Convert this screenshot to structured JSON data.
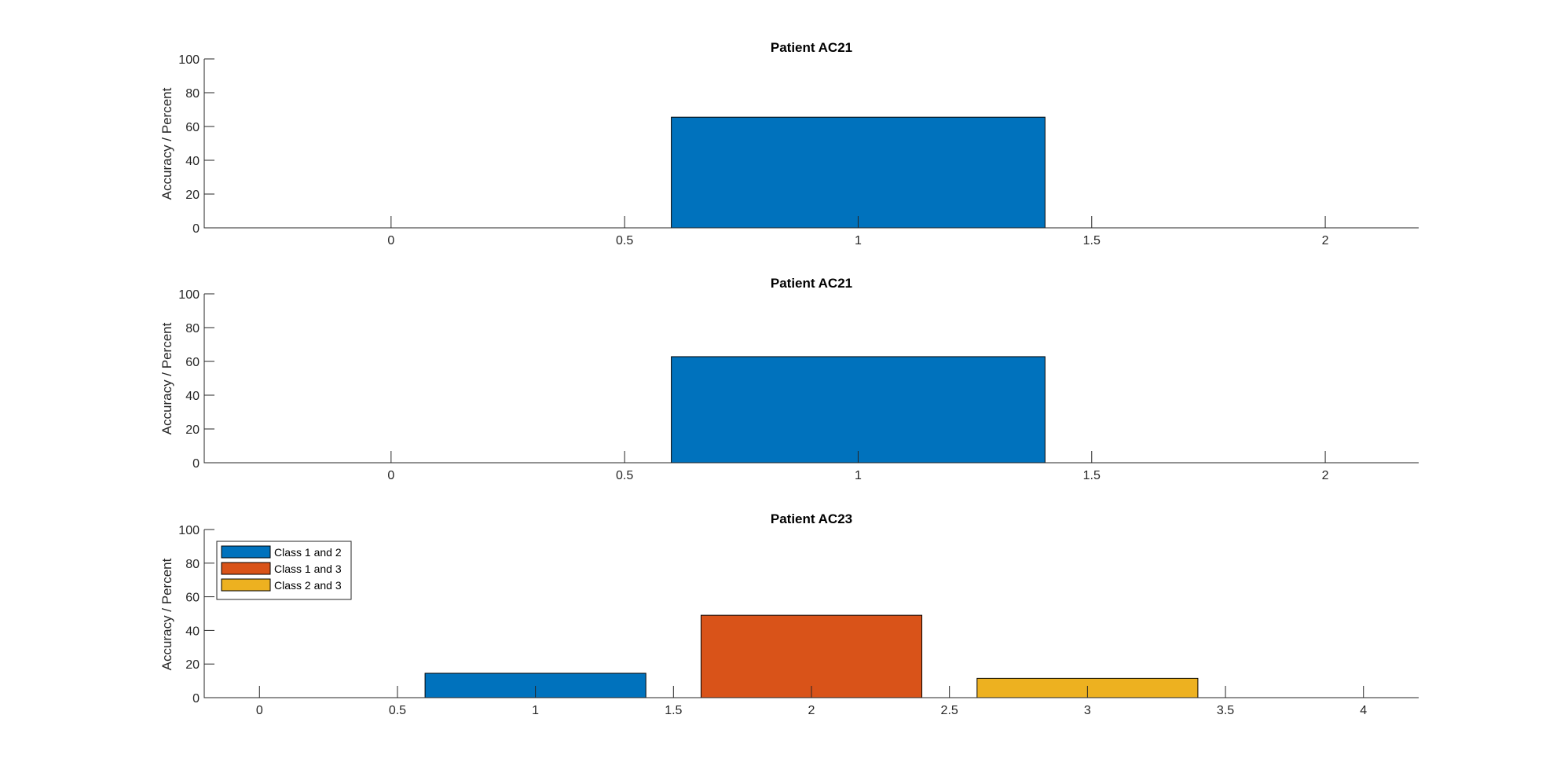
{
  "chart_data": [
    {
      "type": "bar",
      "title": "Patient AC21",
      "xlabel": "",
      "ylabel": "Accuracy / Percent",
      "xlim": [
        -0.4,
        2.2
      ],
      "ylim": [
        0,
        100
      ],
      "xticks": [
        0,
        0.5,
        1,
        1.5,
        2
      ],
      "xtick_labels": [
        "0",
        "0.5",
        "1",
        "1.5",
        "2"
      ],
      "yticks": [
        0,
        20,
        40,
        60,
        80,
        100
      ],
      "ytick_labels": [
        "0",
        "20",
        "40",
        "60",
        "80",
        "100"
      ],
      "bar_width": 0.8,
      "series": [
        {
          "x": 1,
          "value": 65.5,
          "color": "#0072BD"
        }
      ],
      "legend": null
    },
    {
      "type": "bar",
      "title": "Patient AC21",
      "xlabel": "",
      "ylabel": "Accuracy / Percent",
      "xlim": [
        -0.4,
        2.2
      ],
      "ylim": [
        0,
        100
      ],
      "xticks": [
        0,
        0.5,
        1,
        1.5,
        2
      ],
      "xtick_labels": [
        "0",
        "0.5",
        "1",
        "1.5",
        "2"
      ],
      "yticks": [
        0,
        20,
        40,
        60,
        80,
        100
      ],
      "ytick_labels": [
        "0",
        "20",
        "40",
        "60",
        "80",
        "100"
      ],
      "bar_width": 0.8,
      "series": [
        {
          "x": 1,
          "value": 62.8,
          "color": "#0072BD"
        }
      ],
      "legend": null
    },
    {
      "type": "bar",
      "title": "Patient AC23",
      "xlabel": "",
      "ylabel": "Accuracy / Percent",
      "xlim": [
        -0.2,
        4.2
      ],
      "ylim": [
        0,
        100
      ],
      "xticks": [
        0,
        0.5,
        1,
        1.5,
        2,
        2.5,
        3,
        3.5,
        4
      ],
      "xtick_labels": [
        "0",
        "0.5",
        "1",
        "1.5",
        "2",
        "2.5",
        "3",
        "3.5",
        "4"
      ],
      "yticks": [
        0,
        20,
        40,
        60,
        80,
        100
      ],
      "ytick_labels": [
        "0",
        "20",
        "40",
        "60",
        "80",
        "100"
      ],
      "bar_width": 0.8,
      "series": [
        {
          "name": "Class 1 and 2",
          "x": 1,
          "value": 14.5,
          "color": "#0072BD"
        },
        {
          "name": "Class 1 and 3",
          "x": 2,
          "value": 49,
          "color": "#D95319"
        },
        {
          "name": "Class 2 and 3",
          "x": 3,
          "value": 11.5,
          "color": "#EDB120"
        }
      ],
      "legend": {
        "placement": "top-left",
        "entries": [
          "Class 1 and 2",
          "Class 1 and 3",
          "Class 2 and 3"
        ]
      }
    }
  ]
}
